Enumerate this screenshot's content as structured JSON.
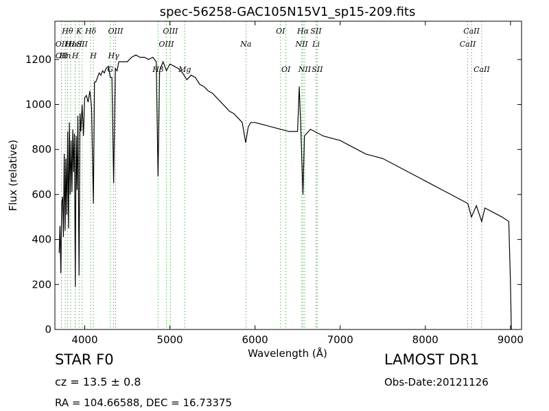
{
  "chart_data": {
    "type": "line",
    "title": "spec-56258-GAC105N15V1_sp15-209.fits",
    "xlabel": "Wavelength (Å)",
    "ylabel": "Flux (relative)",
    "xlim": [
      3650,
      9130
    ],
    "ylim": [
      0,
      1370
    ],
    "xticks": [
      4000,
      5000,
      6000,
      7000,
      8000,
      9000
    ],
    "yticks": [
      0,
      200,
      400,
      600,
      800,
      1000,
      1200
    ],
    "grid": false,
    "line_color": "#000000",
    "marker_color": "#4daf4a",
    "series": [
      {
        "values": [
          [
            3700,
            340
          ],
          [
            3710,
            460
          ],
          [
            3720,
            250
          ],
          [
            3730,
            560
          ],
          [
            3740,
            590
          ],
          [
            3750,
            410
          ],
          [
            3760,
            780
          ],
          [
            3770,
            440
          ],
          [
            3780,
            760
          ],
          [
            3790,
            510
          ],
          [
            3800,
            880
          ],
          [
            3810,
            450
          ],
          [
            3820,
            920
          ],
          [
            3830,
            600
          ],
          [
            3840,
            840
          ],
          [
            3850,
            610
          ],
          [
            3860,
            890
          ],
          [
            3870,
            700
          ],
          [
            3880,
            870
          ],
          [
            3889,
            190
          ],
          [
            3900,
            860
          ],
          [
            3910,
            620
          ],
          [
            3920,
            950
          ],
          [
            3934,
            240
          ],
          [
            3945,
            960
          ],
          [
            3955,
            880
          ],
          [
            3970,
            1000
          ],
          [
            3985,
            860
          ],
          [
            4000,
            1030
          ],
          [
            4020,
            1040
          ],
          [
            4040,
            1010
          ],
          [
            4060,
            1060
          ],
          [
            4080,
            990
          ],
          [
            4102,
            560
          ],
          [
            4115,
            1100
          ],
          [
            4130,
            1100
          ],
          [
            4150,
            1120
          ],
          [
            4170,
            1140
          ],
          [
            4190,
            1130
          ],
          [
            4210,
            1150
          ],
          [
            4230,
            1140
          ],
          [
            4250,
            1160
          ],
          [
            4280,
            1170
          ],
          [
            4300,
            1120
          ],
          [
            4320,
            1120
          ],
          [
            4340,
            650
          ],
          [
            4360,
            1160
          ],
          [
            4380,
            1150
          ],
          [
            4400,
            1190
          ],
          [
            4450,
            1190
          ],
          [
            4500,
            1190
          ],
          [
            4550,
            1210
          ],
          [
            4600,
            1220
          ],
          [
            4650,
            1210
          ],
          [
            4700,
            1210
          ],
          [
            4750,
            1200
          ],
          [
            4800,
            1210
          ],
          [
            4840,
            1190
          ],
          [
            4861,
            680
          ],
          [
            4880,
            1150
          ],
          [
            4920,
            1190
          ],
          [
            4960,
            1150
          ],
          [
            5000,
            1180
          ],
          [
            5050,
            1170
          ],
          [
            5100,
            1160
          ],
          [
            5150,
            1140
          ],
          [
            5200,
            1110
          ],
          [
            5250,
            1130
          ],
          [
            5300,
            1120
          ],
          [
            5350,
            1090
          ],
          [
            5400,
            1080
          ],
          [
            5450,
            1060
          ],
          [
            5500,
            1050
          ],
          [
            5550,
            1030
          ],
          [
            5600,
            1010
          ],
          [
            5650,
            990
          ],
          [
            5700,
            970
          ],
          [
            5750,
            960
          ],
          [
            5800,
            940
          ],
          [
            5850,
            920
          ],
          [
            5890,
            830
          ],
          [
            5920,
            900
          ],
          [
            5950,
            920
          ],
          [
            6000,
            920
          ],
          [
            6100,
            910
          ],
          [
            6200,
            900
          ],
          [
            6300,
            890
          ],
          [
            6400,
            880
          ],
          [
            6500,
            880
          ],
          [
            6520,
            1080
          ],
          [
            6540,
            870
          ],
          [
            6563,
            600
          ],
          [
            6580,
            860
          ],
          [
            6650,
            890
          ],
          [
            6700,
            880
          ],
          [
            6800,
            860
          ],
          [
            6900,
            850
          ],
          [
            7000,
            840
          ],
          [
            7100,
            820
          ],
          [
            7200,
            800
          ],
          [
            7300,
            780
          ],
          [
            7400,
            770
          ],
          [
            7500,
            760
          ],
          [
            7600,
            740
          ],
          [
            7700,
            720
          ],
          [
            7800,
            700
          ],
          [
            7900,
            680
          ],
          [
            8000,
            660
          ],
          [
            8100,
            640
          ],
          [
            8200,
            620
          ],
          [
            8300,
            600
          ],
          [
            8400,
            580
          ],
          [
            8500,
            560
          ],
          [
            8542,
            500
          ],
          [
            8600,
            550
          ],
          [
            8662,
            480
          ],
          [
            8700,
            540
          ],
          [
            8800,
            520
          ],
          [
            8900,
            500
          ],
          [
            8980,
            480
          ],
          [
            9000,
            200
          ],
          [
            9010,
            0
          ]
        ]
      }
    ],
    "line_markers": [
      {
        "x": 3727,
        "label": "OII",
        "row": 1
      },
      {
        "x": 3727,
        "label": "OII",
        "row": 2
      },
      {
        "x": 3771,
        "label": "Hn",
        "row": 2
      },
      {
        "x": 3798,
        "label": "Hθ",
        "row": 0
      },
      {
        "x": 3835,
        "label": "Hε",
        "row": 1
      },
      {
        "x": 3889,
        "label": "HeI",
        "row": 1
      },
      {
        "x": 3889,
        "label": "H",
        "row": 2
      },
      {
        "x": 3934,
        "label": "K",
        "row": 0
      },
      {
        "x": 3970,
        "label": "SII",
        "row": 1
      },
      {
        "x": 4070,
        "label": "Hδ",
        "row": 0
      },
      {
        "x": 4102,
        "label": "H",
        "row": 2
      },
      {
        "x": 4300,
        "label": "G",
        "row": 3
      },
      {
        "x": 4340,
        "label": "Hγ",
        "row": 2
      },
      {
        "x": 4363,
        "label": "OIII",
        "row": 0
      },
      {
        "x": 4861,
        "label": "Hβ",
        "row": 3
      },
      {
        "x": 4959,
        "label": "OIII",
        "row": 1
      },
      {
        "x": 5007,
        "label": "OIII",
        "row": 0
      },
      {
        "x": 5175,
        "label": "Mg",
        "row": 3
      },
      {
        "x": 5893,
        "label": "Na",
        "row": 1
      },
      {
        "x": 6300,
        "label": "OI",
        "row": 0
      },
      {
        "x": 6363,
        "label": "OI",
        "row": 3
      },
      {
        "x": 6548,
        "label": "NII",
        "row": 1
      },
      {
        "x": 6563,
        "label": "Hα",
        "row": 0
      },
      {
        "x": 6583,
        "label": "NII",
        "row": 3
      },
      {
        "x": 6716,
        "label": "SII",
        "row": 0
      },
      {
        "x": 6717,
        "label": "Li",
        "row": 1
      },
      {
        "x": 6731,
        "label": "SII",
        "row": 3
      },
      {
        "x": 8498,
        "label": "CaII",
        "row": 1
      },
      {
        "x": 8542,
        "label": "CaII",
        "row": 0
      },
      {
        "x": 8662,
        "label": "CaII",
        "row": 3
      }
    ]
  },
  "info": {
    "object_class": "STAR   F0",
    "redshift": "cz = 13.5  ± 0.8",
    "coords": "RA = 104.66588, DEC = 16.73375",
    "survey": "LAMOST DR1",
    "obs_date": "Obs-Date:20121126"
  }
}
